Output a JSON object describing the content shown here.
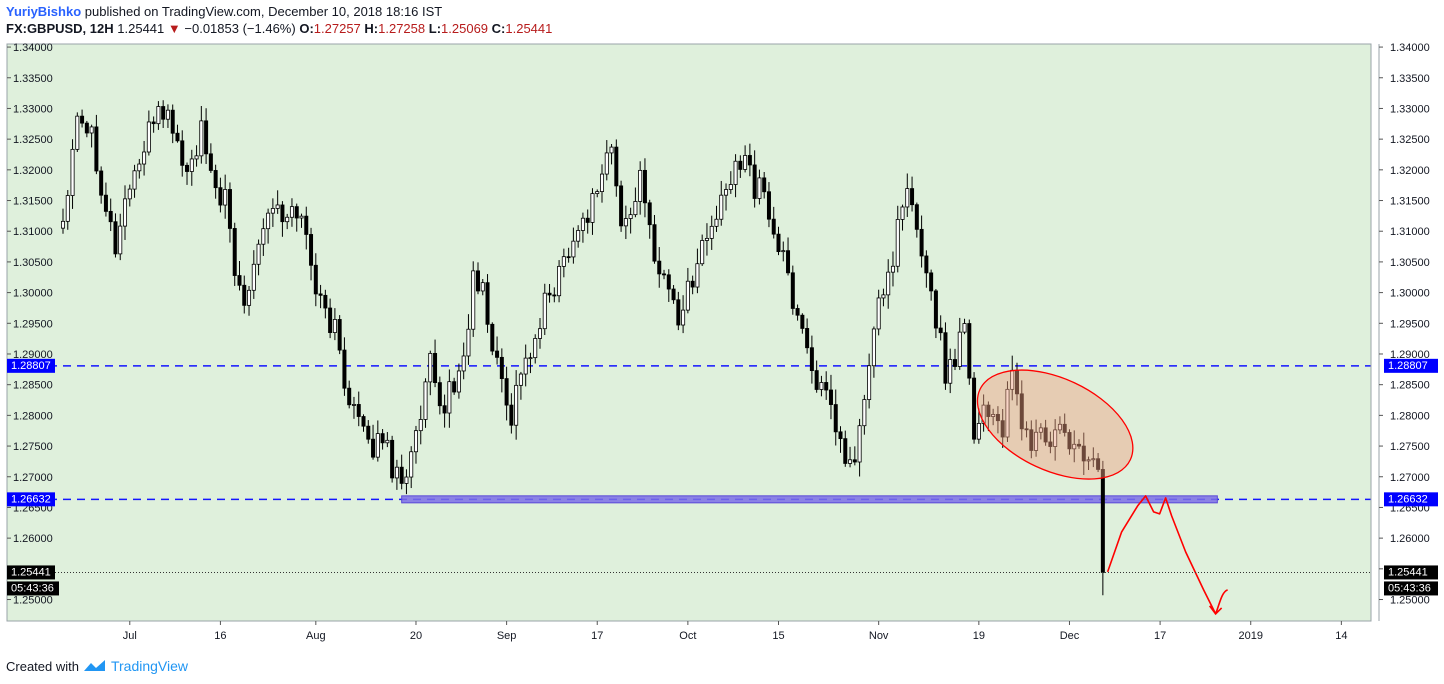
{
  "header": {
    "author": "YuriyBishko",
    "published_text": "published on TradingView.com, December 10, 2018 18:16 IST",
    "symbol": "FX:GBPUSD, 12H",
    "last": "1.25441",
    "change": "−0.01853 (−1.46%)",
    "o_label": "O:",
    "o_value": "1.27257",
    "h_label": "H:",
    "h_value": "1.27258",
    "l_label": "L:",
    "l_value": "1.25069",
    "c_label": "C:",
    "c_value": "1.25441"
  },
  "footer": {
    "created_with": "Created with",
    "brand": "TradingView"
  },
  "colors": {
    "plot_bg": "#dff0dc",
    "level_line": "#1414ff",
    "label_bg": "#0000ff",
    "zone_fill": "#7c6ee6",
    "ellipse_stroke": "#ff0000",
    "ellipse_fill": "#f0a080",
    "drawing": "#ff0000",
    "candle": "#000000"
  },
  "chart_data": {
    "type": "candlestick",
    "ylim": [
      1.2465,
      1.3405
    ],
    "y_ticks": [
      "1.34000",
      "1.33500",
      "1.33000",
      "1.32500",
      "1.32000",
      "1.31500",
      "1.31000",
      "1.30500",
      "1.30000",
      "1.29500",
      "1.29000",
      "1.28500",
      "1.28000",
      "1.27500",
      "1.27000",
      "1.26500",
      "1.26000",
      "1.25500",
      "1.25000"
    ],
    "x_ticks": [
      {
        "label": "Jul",
        "bar": 14
      },
      {
        "label": "16",
        "bar": 33
      },
      {
        "label": "Aug",
        "bar": 53
      },
      {
        "label": "20",
        "bar": 74
      },
      {
        "label": "Sep",
        "bar": 93
      },
      {
        "label": "17",
        "bar": 112
      },
      {
        "label": "Oct",
        "bar": 131
      },
      {
        "label": "15",
        "bar": 150
      },
      {
        "label": "Nov",
        "bar": 171
      },
      {
        "label": "19",
        "bar": 192
      },
      {
        "label": "Dec",
        "bar": 211
      },
      {
        "label": "17",
        "bar": 230
      },
      {
        "label": "2019",
        "bar": 249
      },
      {
        "label": "14",
        "bar": 268
      }
    ],
    "waypoints": [
      [
        0,
        1.312
      ],
      [
        3,
        1.33
      ],
      [
        6,
        1.326
      ],
      [
        9,
        1.314
      ],
      [
        11,
        1.3075
      ],
      [
        14,
        1.318
      ],
      [
        17,
        1.323
      ],
      [
        20,
        1.331
      ],
      [
        23,
        1.327
      ],
      [
        26,
        1.319
      ],
      [
        29,
        1.326
      ],
      [
        31,
        1.318
      ],
      [
        34,
        1.315
      ],
      [
        36,
        1.303
      ],
      [
        38,
        1.299
      ],
      [
        41,
        1.309
      ],
      [
        44,
        1.315
      ],
      [
        46,
        1.311
      ],
      [
        49,
        1.314
      ],
      [
        51,
        1.309
      ],
      [
        54,
        1.298
      ],
      [
        57,
        1.294
      ],
      [
        59,
        1.286
      ],
      [
        62,
        1.279
      ],
      [
        64,
        1.274
      ],
      [
        67,
        1.277
      ],
      [
        69,
        1.272
      ],
      [
        71,
        1.27
      ],
      [
        73,
        1.273
      ],
      [
        75,
        1.279
      ],
      [
        77,
        1.288
      ],
      [
        79,
        1.281
      ],
      [
        82,
        1.285
      ],
      [
        84,
        1.289
      ],
      [
        86,
        1.302
      ],
      [
        88,
        1.3
      ],
      [
        90,
        1.291
      ],
      [
        92,
        1.286
      ],
      [
        94,
        1.28
      ],
      [
        96,
        1.288
      ],
      [
        99,
        1.291
      ],
      [
        101,
        1.298
      ],
      [
        104,
        1.303
      ],
      [
        106,
        1.308
      ],
      [
        108,
        1.31
      ],
      [
        111,
        1.315
      ],
      [
        113,
        1.32
      ],
      [
        115,
        1.324
      ],
      [
        117,
        1.31
      ],
      [
        119,
        1.314
      ],
      [
        121,
        1.318
      ],
      [
        123,
        1.31
      ],
      [
        125,
        1.304
      ],
      [
        127,
        1.301
      ],
      [
        129,
        1.296
      ],
      [
        131,
        1.3
      ],
      [
        133,
        1.306
      ],
      [
        135,
        1.309
      ],
      [
        138,
        1.314
      ],
      [
        141,
        1.32
      ],
      [
        143,
        1.324
      ],
      [
        145,
        1.317
      ],
      [
        147,
        1.316
      ],
      [
        149,
        1.31
      ],
      [
        151,
        1.305
      ],
      [
        153,
        1.299
      ],
      [
        155,
        1.294
      ],
      [
        157,
        1.288
      ],
      [
        159,
        1.284
      ],
      [
        161,
        1.28
      ],
      [
        163,
        1.275
      ],
      [
        165,
        1.271
      ],
      [
        167,
        1.277
      ],
      [
        169,
        1.288
      ],
      [
        171,
        1.298
      ],
      [
        173,
        1.303
      ],
      [
        175,
        1.31
      ],
      [
        177,
        1.316
      ],
      [
        179,
        1.31
      ],
      [
        181,
        1.304
      ],
      [
        183,
        1.296
      ],
      [
        185,
        1.287
      ],
      [
        187,
        1.29
      ],
      [
        189,
        1.296
      ],
      [
        190,
        1.288
      ],
      [
        191,
        1.276
      ],
      [
        193,
        1.282
      ],
      [
        195,
        1.28
      ],
      [
        197,
        1.278
      ],
      [
        199,
        1.286
      ],
      [
        201,
        1.279
      ],
      [
        203,
        1.275
      ],
      [
        205,
        1.278
      ],
      [
        207,
        1.274
      ],
      [
        209,
        1.279
      ],
      [
        211,
        1.273
      ],
      [
        213,
        1.276
      ],
      [
        215,
        1.272
      ],
      [
        217,
        1.2726
      ],
      [
        218,
        1.2544
      ]
    ],
    "levels": [
      1.28807,
      1.26632
    ],
    "level_labels": [
      "1.28807",
      "1.26632"
    ],
    "last_price": 1.25441,
    "last_price_label": "1.25441",
    "countdown": "05:43:36"
  }
}
